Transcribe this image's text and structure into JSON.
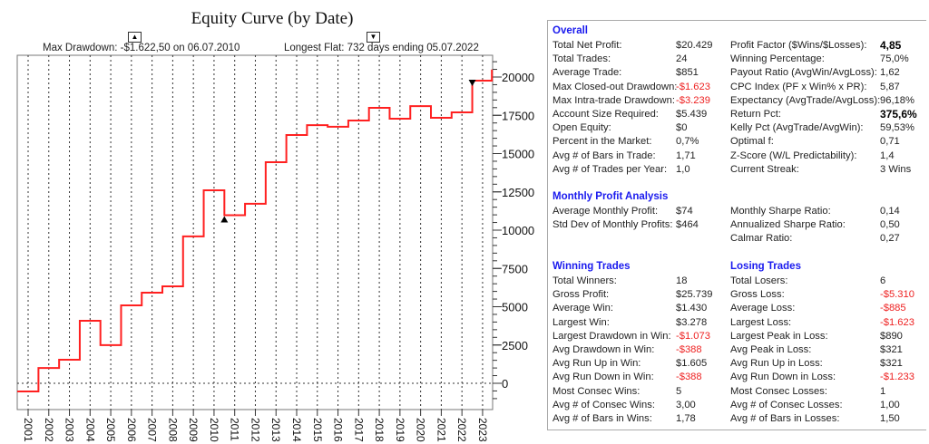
{
  "chart_data": {
    "type": "line",
    "step": true,
    "title": "Equity Curve (by Date)",
    "annotations": {
      "max_drawdown": "Max Drawdown: -$1.622,50 on 06.07.2010",
      "longest_flat": "Longest Flat: 732 days ending 05.07.2022"
    },
    "x_ticks": [
      "2001",
      "2002",
      "2003",
      "2004",
      "2005",
      "2006",
      "2007",
      "2008",
      "2009",
      "2010",
      "2011",
      "2012",
      "2013",
      "2014",
      "2015",
      "2016",
      "2017",
      "2018",
      "2019",
      "2020",
      "2021",
      "2022",
      "2023"
    ],
    "y_ticks": [
      0,
      2500,
      5000,
      7500,
      10000,
      12500,
      15000,
      17500,
      20000
    ],
    "ylim": [
      -1200,
      22500
    ],
    "xlim": [
      2000.47,
      2023.5
    ],
    "series": [
      {
        "name": "Equity",
        "color": "#ff2020",
        "x": [
          2000.47,
          2001.5,
          2002.5,
          2003.5,
          2004.5,
          2005.5,
          2006.5,
          2007.5,
          2008.5,
          2009.5,
          2010.5,
          2011.5,
          2012.5,
          2013.5,
          2014.5,
          2015.5,
          2016.5,
          2017.5,
          2018.5,
          2019.5,
          2020.5,
          2021.5,
          2022.5,
          2023.45
        ],
        "values": [
          -530,
          1000,
          1540,
          4080,
          2490,
          5090,
          5920,
          6330,
          9590,
          12600,
          10977,
          11720,
          14440,
          16210,
          16860,
          16750,
          17160,
          17990,
          17280,
          18100,
          17340,
          17690,
          19760,
          20429
        ]
      }
    ],
    "markers": [
      {
        "name": "max-drawdown",
        "x": 2010.5,
        "value": 10977,
        "shape": "up"
      },
      {
        "name": "longest-flat-end",
        "x": 2022.5,
        "value": 19760,
        "shape": "down"
      }
    ]
  },
  "stats": {
    "overall": {
      "title": "Overall",
      "left": [
        {
          "label": "Total Net Profit:",
          "value": "$20.429"
        },
        {
          "label": "Total Trades:",
          "value": "24"
        },
        {
          "label": "Average Trade:",
          "value": "$851"
        },
        {
          "label": "Max Closed-out Drawdown:",
          "value": "-$1.623",
          "neg": true
        },
        {
          "label": "Max Intra-trade Drawdown:",
          "value": "-$3.239",
          "neg": true
        },
        {
          "label": "Account Size Required:",
          "value": "$5.439"
        },
        {
          "label": "Open Equity:",
          "value": "$0"
        },
        {
          "label": "Percent in the Market:",
          "value": "0,7%"
        },
        {
          "label": "Avg # of Bars in Trade:",
          "value": "1,71"
        },
        {
          "label": "Avg # of Trades per Year:",
          "value": "1,0"
        }
      ],
      "right": [
        {
          "label": "Profit Factor ($Wins/$Losses):",
          "value": "4,85",
          "bold": true
        },
        {
          "label": "Winning Percentage:",
          "value": "75,0%"
        },
        {
          "label": "Payout Ratio (AvgWin/AvgLoss):",
          "value": "1,62"
        },
        {
          "label": "CPC Index (PF x Win% x PR):",
          "value": "5,87"
        },
        {
          "label": "Expectancy (AvgTrade/AvgLoss):",
          "value": "96,18%"
        },
        {
          "label": "Return Pct:",
          "value": "375,6%",
          "bold": true
        },
        {
          "label": "Kelly Pct (AvgTrade/AvgWin):",
          "value": "59,53%"
        },
        {
          "label": "Optimal f:",
          "value": "0,71"
        },
        {
          "label": "Z-Score (W/L Predictability):",
          "value": "1,4"
        },
        {
          "label": "Current Streak:",
          "value": "3 Wins"
        }
      ]
    },
    "monthly": {
      "title": "Monthly Profit Analysis",
      "left": [
        {
          "label": "Average Monthly Profit:",
          "value": "$74"
        },
        {
          "label": "Std Dev of Monthly Profits:",
          "value": "$464"
        }
      ],
      "right": [
        {
          "label": "Monthly Sharpe Ratio:",
          "value": "0,14"
        },
        {
          "label": "Annualized Sharpe Ratio:",
          "value": "0,50"
        },
        {
          "label": "Calmar Ratio:",
          "value": "0,27"
        }
      ]
    },
    "winning": {
      "title": "Winning Trades",
      "rows": [
        {
          "label": "Total Winners:",
          "value": "18"
        },
        {
          "label": "Gross Profit:",
          "value": "$25.739"
        },
        {
          "label": "Average Win:",
          "value": "$1.430"
        },
        {
          "label": "Largest Win:",
          "value": "$3.278"
        },
        {
          "label": "Largest Drawdown in Win:",
          "value": "-$1.073",
          "neg": true
        },
        {
          "label": "Avg Drawdown in Win:",
          "value": "-$388",
          "neg": true
        },
        {
          "label": "Avg Run Up in Win:",
          "value": "$1.605"
        },
        {
          "label": "Avg Run Down in Win:",
          "value": "-$388",
          "neg": true
        },
        {
          "label": "Most Consec Wins:",
          "value": "5"
        },
        {
          "label": "Avg # of Consec Wins:",
          "value": "3,00"
        },
        {
          "label": "Avg # of Bars in Wins:",
          "value": "1,78"
        }
      ]
    },
    "losing": {
      "title": "Losing Trades",
      "rows": [
        {
          "label": "Total Losers:",
          "value": "6"
        },
        {
          "label": "Gross Loss:",
          "value": "-$5.310",
          "neg": true
        },
        {
          "label": "Average Loss:",
          "value": "-$885",
          "neg": true
        },
        {
          "label": "Largest Loss:",
          "value": "-$1.623",
          "neg": true
        },
        {
          "label": "Largest Peak in Loss:",
          "value": "$890"
        },
        {
          "label": "Avg Peak in Loss:",
          "value": "$321"
        },
        {
          "label": "Avg Run Up in Loss:",
          "value": "$321"
        },
        {
          "label": "Avg Run Down in Loss:",
          "value": "-$1.233",
          "neg": true
        },
        {
          "label": "Most Consec Losses:",
          "value": "1"
        },
        {
          "label": "Avg # of Consec Losses:",
          "value": "1,00"
        },
        {
          "label": "Avg # of Bars in Losses:",
          "value": "1,50"
        }
      ]
    }
  }
}
